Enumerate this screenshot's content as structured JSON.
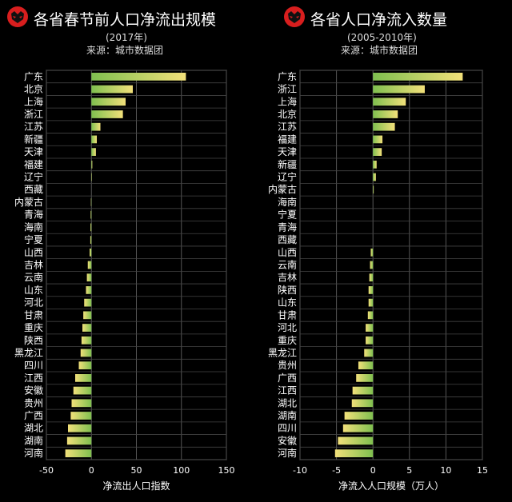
{
  "colors": {
    "background": "#000000",
    "bar_start": "#7fbf4f",
    "bar_end": "#f2e07a",
    "logo_red": "#d81e1e"
  },
  "left": {
    "title": "各省春节前人口净流出规模",
    "subtitle": "(2017年)",
    "source": "来源：城市数据团",
    "logo_icon": "red-mask-logo-icon"
  },
  "right": {
    "title": "各省人口净流入数量",
    "subtitle": "(2005-2010年)",
    "source": "来源：城市数据团",
    "logo_icon": "red-mask-logo-icon"
  },
  "chart_data": [
    {
      "type": "bar",
      "orientation": "horizontal",
      "xlabel": "净流出人口指数",
      "ylabel": "",
      "xlim": [
        -50,
        150
      ],
      "xticks": [
        -50,
        0,
        50,
        100,
        150
      ],
      "grid": true,
      "categories": [
        "广东",
        "北京",
        "上海",
        "浙江",
        "江苏",
        "新疆",
        "天津",
        "福建",
        "辽宁",
        "西藏",
        "内蒙古",
        "青海",
        "海南",
        "宁夏",
        "山西",
        "吉林",
        "云南",
        "山东",
        "河北",
        "甘肃",
        "重庆",
        "陕西",
        "黑龙江",
        "四川",
        "江西",
        "安徽",
        "贵州",
        "广西",
        "湖北",
        "湖南",
        "河南"
      ],
      "values": [
        105,
        46,
        38,
        35,
        10,
        6,
        5,
        1,
        0.5,
        0,
        -0.5,
        -0.8,
        -1,
        -1.2,
        -2,
        -4,
        -5,
        -6,
        -8,
        -9,
        -10,
        -11,
        -12,
        -14,
        -18,
        -20,
        -22,
        -23,
        -26,
        -27,
        -29
      ]
    },
    {
      "type": "bar",
      "orientation": "horizontal",
      "xlabel": "净流入人口规模（万人）",
      "ylabel": "",
      "xlim": [
        -10,
        15
      ],
      "xticks": [
        -10,
        -5,
        0,
        5,
        10,
        15
      ],
      "grid": true,
      "categories": [
        "广东",
        "浙江",
        "上海",
        "北京",
        "江苏",
        "福建",
        "天津",
        "新疆",
        "辽宁",
        "内蒙古",
        "海南",
        "宁夏",
        "青海",
        "西藏",
        "山西",
        "云南",
        "吉林",
        "陕西",
        "山东",
        "甘肃",
        "河北",
        "重庆",
        "黑龙江",
        "贵州",
        "广西",
        "江西",
        "湖北",
        "湖南",
        "四川",
        "安徽",
        "河南"
      ],
      "values": [
        12.3,
        7.1,
        4.5,
        3.4,
        3.0,
        1.3,
        1.2,
        0.5,
        0.4,
        0.1,
        0,
        0,
        0,
        0,
        -0.3,
        -0.4,
        -0.5,
        -0.6,
        -0.6,
        -0.7,
        -1.0,
        -1.0,
        -1.2,
        -2.0,
        -2.3,
        -2.8,
        -2.9,
        -3.9,
        -4.1,
        -4.8,
        -5.2
      ]
    }
  ]
}
